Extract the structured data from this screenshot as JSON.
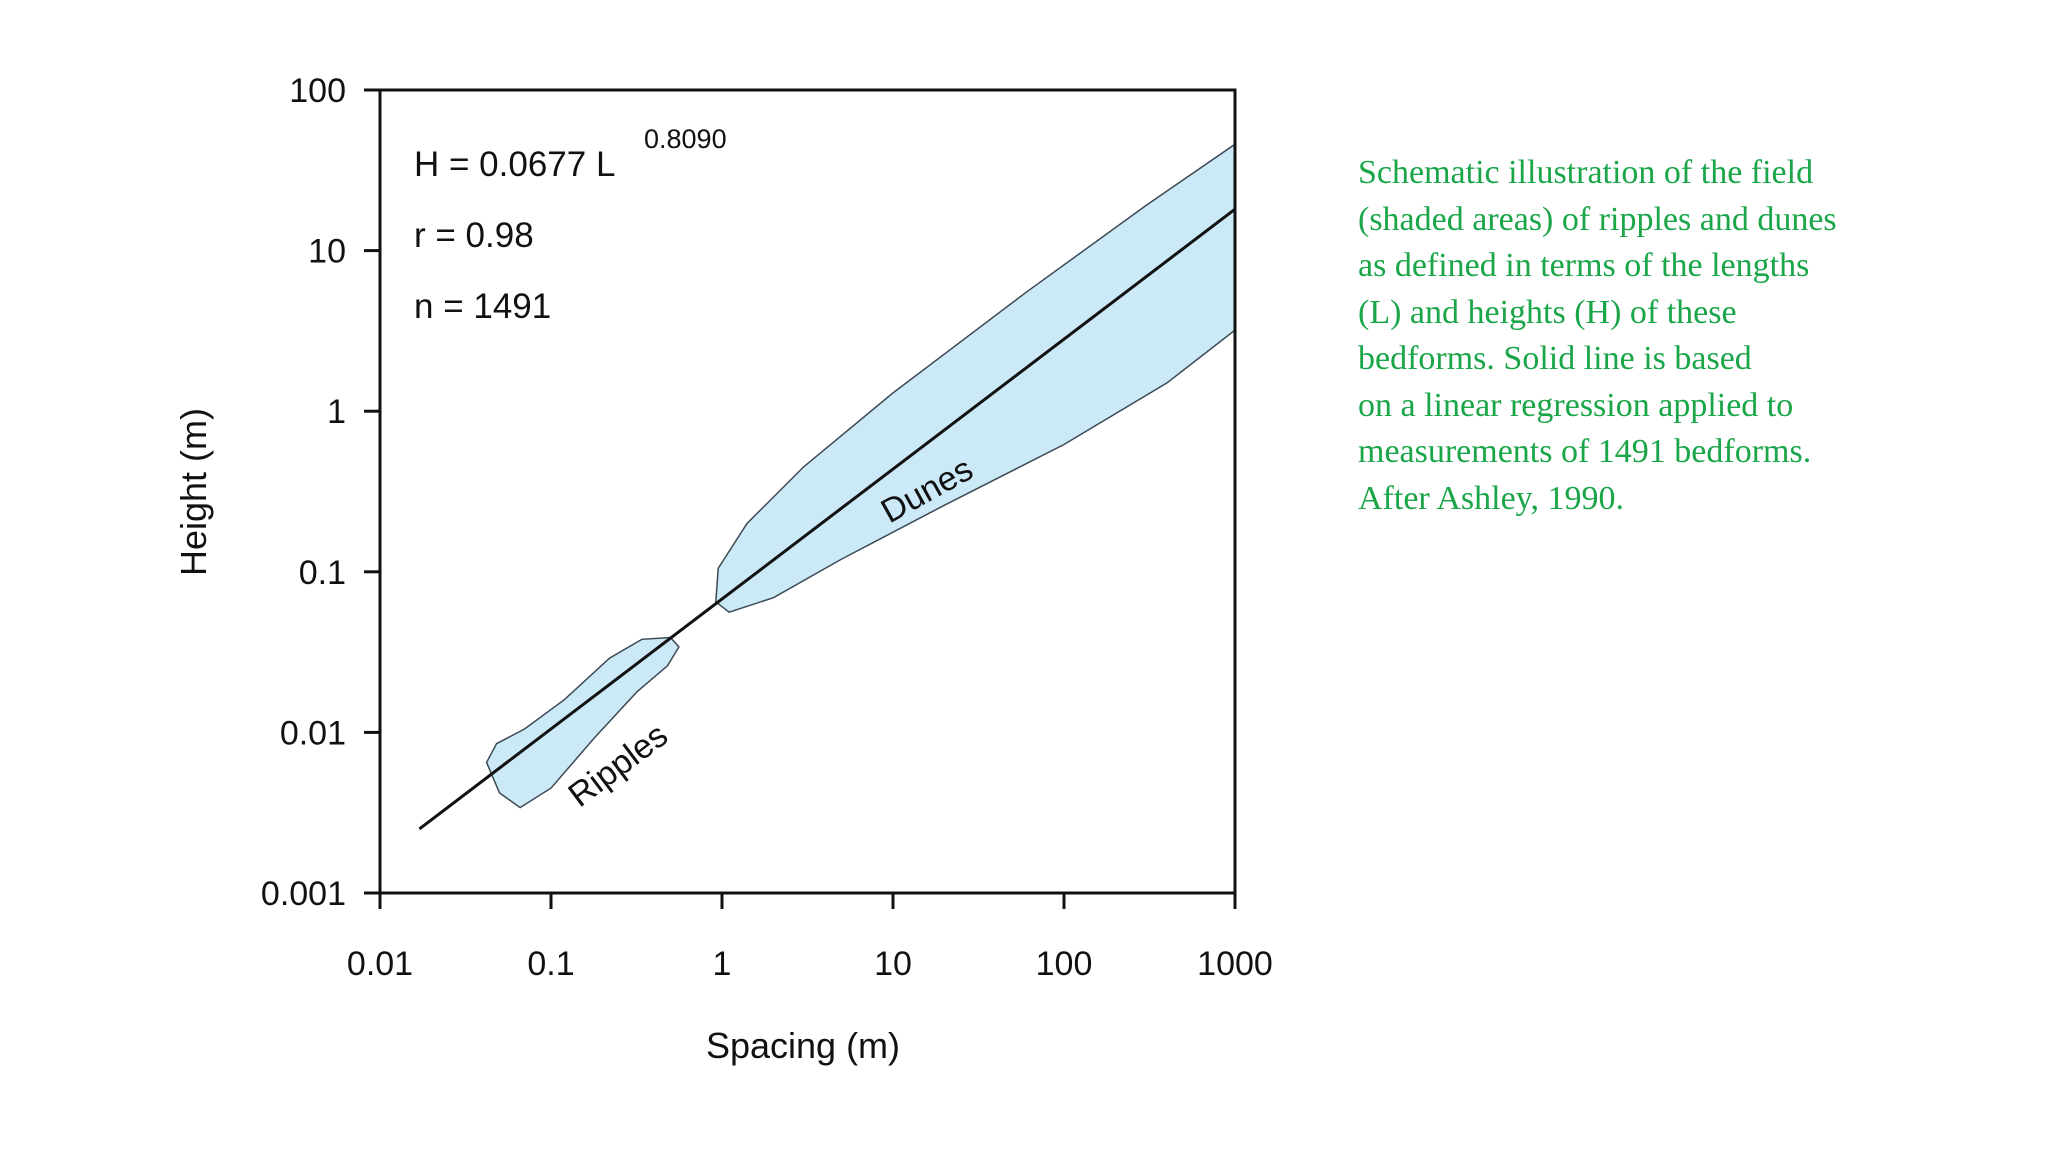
{
  "chart_data": {
    "type": "scatter",
    "x_scale": "log",
    "y_scale": "log",
    "xlim": [
      0.01,
      1000
    ],
    "ylim": [
      0.001,
      100
    ],
    "xlabel": "Spacing (m)",
    "ylabel": "Height (m)",
    "x_ticks": [
      "0.01",
      "0.1",
      "1",
      "10",
      "100",
      "1000"
    ],
    "y_ticks": [
      "0.001",
      "0.01",
      "0.1",
      "1",
      "10",
      "100"
    ],
    "grid": false,
    "annotations": {
      "equation_main": "H = 0.0677 L",
      "equation_exponent": "0.8090",
      "r": "r = 0.98",
      "n": "n = 1491"
    },
    "regression": {
      "coefficient": 0.0677,
      "exponent": 0.809,
      "x_range": [
        0.017,
        1000
      ]
    },
    "regions": [
      {
        "label": "Ripples",
        "color": "#cce9f7"
      },
      {
        "label": "Dunes",
        "color": "#cce9f7"
      }
    ]
  },
  "caption": {
    "lines": [
      "Schematic illustration of the field",
      "(shaded areas) of ripples and dunes",
      "as defined in terms of the lengths",
      "(L) and heights (H) of these",
      "bedforms. Solid line is based",
      "on a linear regression applied to",
      "measurements of 1491 bedforms.",
      "After Ashley, 1990."
    ],
    "color": "#1aa648"
  }
}
